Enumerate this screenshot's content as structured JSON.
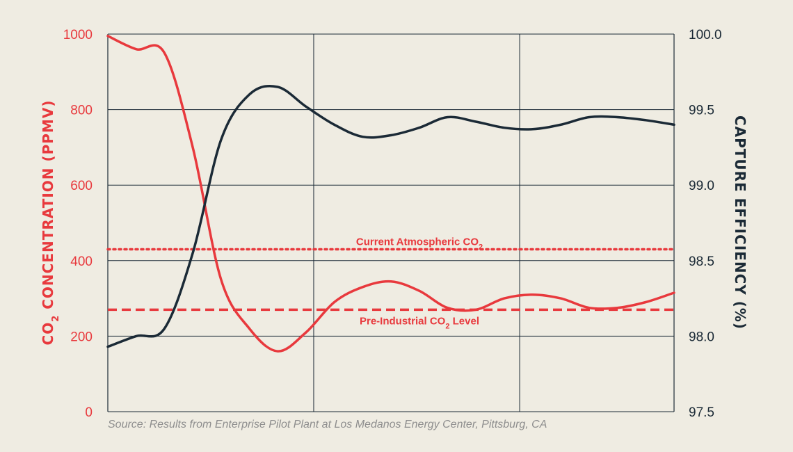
{
  "chart_data": {
    "type": "line",
    "x": [
      0,
      5,
      10,
      15,
      20,
      25,
      30,
      35,
      40,
      45,
      50,
      55,
      60,
      65,
      70,
      75,
      80,
      85,
      90,
      95,
      100
    ],
    "series": [
      {
        "name": "CO2 Concentration",
        "axis": "left",
        "color": "#e8393d",
        "values": [
          995,
          960,
          950,
          700,
          350,
          220,
          160,
          210,
          290,
          330,
          345,
          320,
          275,
          270,
          300,
          310,
          300,
          275,
          275,
          290,
          315
        ]
      },
      {
        "name": "Capture Efficiency",
        "axis": "right",
        "color": "#1b2a36",
        "values": [
          97.93,
          98.0,
          98.05,
          98.55,
          99.3,
          99.6,
          99.65,
          99.52,
          99.4,
          99.32,
          99.33,
          99.38,
          99.45,
          99.42,
          99.38,
          99.37,
          99.4,
          99.45,
          99.45,
          99.43,
          99.4
        ]
      }
    ],
    "reference_lines": [
      {
        "label": "Current Atmospheric CO",
        "subscript": "2",
        "suffix": "",
        "value": 430,
        "style": "dotted"
      },
      {
        "label": "Pre-Industrial CO",
        "subscript": "2",
        "suffix": " Level",
        "value": 270,
        "style": "dashed"
      }
    ],
    "y_left": {
      "label": "CO",
      "label_sub": "2",
      "label_rest": " CONCENTRATION (PPMV)",
      "ylim": [
        0,
        1000
      ],
      "ticks": [
        "0",
        "200",
        "400",
        "600",
        "800",
        "1000"
      ]
    },
    "y_right": {
      "label": "CAPTURE EFFICIENCY (%)",
      "ylim": [
        97.5,
        100.0
      ],
      "ticks": [
        "97.5",
        "98.0",
        "98.5",
        "99.0",
        "99.5",
        "100.0"
      ]
    },
    "xlim": [
      0,
      100
    ],
    "x_grid": [
      36.36,
      72.73
    ],
    "grid": true,
    "source": "Source: Results from Enterprise Pilot Plant at Los Medanos Energy Center, Pittsburg, CA"
  },
  "colors": {
    "co2": "#e8393d",
    "efficiency": "#1b2a36",
    "background": "#efece2"
  }
}
